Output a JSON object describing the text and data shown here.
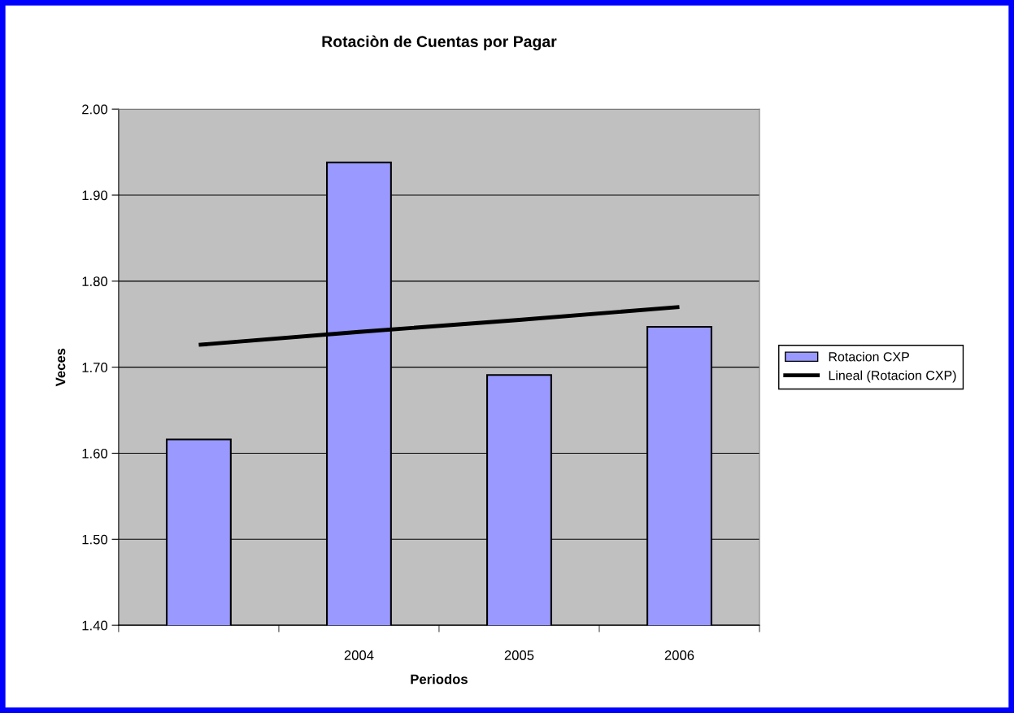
{
  "chart_data": {
    "type": "bar",
    "title": "Rotaciòn de Cuentas por Pagar",
    "xlabel": "Periodos",
    "ylabel": "Veces",
    "categories": [
      null,
      "2004",
      "2005",
      "2006"
    ],
    "series": [
      {
        "name": "Rotacion CXP",
        "color": "#9999ff",
        "values": [
          1.616,
          1.938,
          1.691,
          1.747
        ]
      },
      {
        "name": "Lineal (Rotacion CXP)",
        "type": "line",
        "color": "#000000",
        "values": [
          1.726,
          1.741,
          1.755,
          1.77
        ]
      }
    ],
    "ylim": [
      1.4,
      2.0
    ],
    "yticks": [
      {
        "value": 1.4,
        "label": "1.40"
      },
      {
        "value": 1.5,
        "label": "1.50"
      },
      {
        "value": 1.6,
        "label": "1.60"
      },
      {
        "value": 1.7,
        "label": "1.70"
      },
      {
        "value": 1.8,
        "label": "1.80"
      },
      {
        "value": 1.9,
        "label": "1.90"
      },
      {
        "value": 2.0,
        "label": "2.00"
      }
    ],
    "grid": "y",
    "legend": "right",
    "marker": "none",
    "line_style": "solid"
  }
}
